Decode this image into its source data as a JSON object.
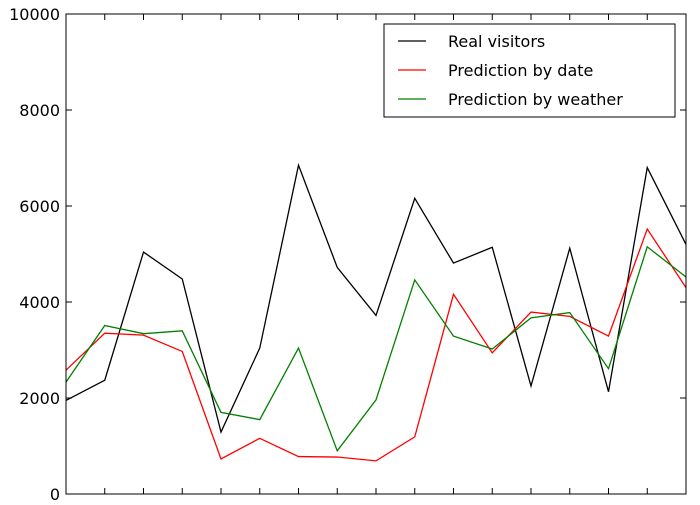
{
  "chart_data": {
    "type": "line",
    "x": [
      0,
      1,
      2,
      3,
      4,
      5,
      6,
      7,
      8,
      9,
      10,
      11,
      12,
      13,
      14,
      15,
      16
    ],
    "xlim": [
      0,
      16
    ],
    "ylim": [
      0,
      10000
    ],
    "y_ticks": [
      0,
      2000,
      4000,
      6000,
      8000,
      10000
    ],
    "y_tick_labels": [
      "0",
      "2000",
      "4000",
      "6000",
      "8000",
      "10000"
    ],
    "grid": false,
    "legend_position": "top-right",
    "title": "",
    "xlabel": "",
    "ylabel": "",
    "series": [
      {
        "name": "Real visitors",
        "color": "#000000",
        "values": [
          1950,
          2370,
          5040,
          4480,
          1290,
          3040,
          6850,
          4720,
          3720,
          6160,
          4810,
          5140,
          2250,
          5120,
          2130,
          6800,
          5200
        ]
      },
      {
        "name": "Prediction by date",
        "color": "#ff0000",
        "values": [
          2580,
          3350,
          3310,
          2970,
          730,
          1160,
          780,
          770,
          690,
          1190,
          4160,
          2940,
          3790,
          3700,
          3290,
          5520,
          4300
        ]
      },
      {
        "name": "Prediction by weather",
        "color": "#008000",
        "values": [
          2330,
          3510,
          3340,
          3400,
          1700,
          1550,
          3040,
          900,
          1960,
          4460,
          3290,
          3020,
          3670,
          3780,
          2610,
          5150,
          4520
        ]
      }
    ]
  }
}
